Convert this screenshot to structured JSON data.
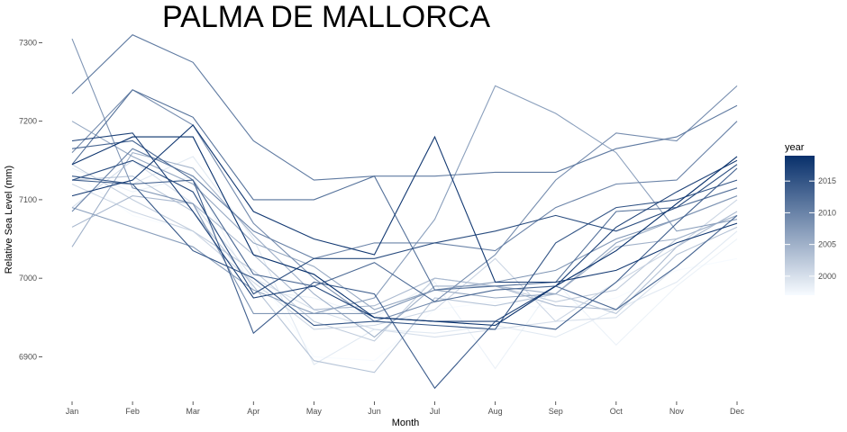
{
  "chart_data": {
    "type": "line",
    "title": "PALMA DE MALLORCA",
    "xlabel": "Month",
    "ylabel": "Relative Sea Level (mm)",
    "categories": [
      "Jan",
      "Feb",
      "Mar",
      "Apr",
      "May",
      "Jun",
      "Jul",
      "Aug",
      "Sep",
      "Oct",
      "Nov",
      "Dec"
    ],
    "ylim": [
      6850,
      7320
    ],
    "yticks": [
      6900,
      7000,
      7100,
      7200,
      7300
    ],
    "grid": false,
    "legend": {
      "title": "year",
      "position": "right",
      "type": "colorbar",
      "range": [
        1997,
        2019
      ],
      "ticks": [
        2000,
        2005,
        2010,
        2015
      ],
      "color_low": "#f7fbff",
      "color_high": "#08306b"
    },
    "series": [
      {
        "year": 1997,
        "values": [
          7135,
          7080,
          7060,
          7010,
          6900,
          6895,
          6960,
          6970,
          6960,
          6975,
          7010,
          7025
        ]
      },
      {
        "year": 1998,
        "values": [
          7140,
          7110,
          7130,
          6985,
          6975,
          6950,
          6995,
          6885,
          6995,
          6915,
          6990,
          7050
        ]
      },
      {
        "year": 1999,
        "values": [
          7130,
          7120,
          7155,
          7050,
          6890,
          6935,
          6930,
          6940,
          6925,
          6960,
          6995,
          7060
        ]
      },
      {
        "year": 2000,
        "values": [
          7090,
          7150,
          7095,
          7000,
          6960,
          6935,
          6925,
          6935,
          6945,
          6950,
          7015,
          7080
        ]
      },
      {
        "year": 2001,
        "values": [
          7120,
          7085,
          7060,
          6995,
          6935,
          6940,
          6960,
          7025,
          6945,
          6995,
          7040,
          7100
        ]
      },
      {
        "year": 2002,
        "values": [
          7145,
          7100,
          7060,
          7010,
          6945,
          6920,
          7000,
          6990,
          6970,
          6985,
          7050,
          7080
        ]
      },
      {
        "year": 2003,
        "values": [
          7125,
          7130,
          7085,
          6990,
          6895,
          6880,
          6975,
          6965,
          6980,
          6955,
          7030,
          7065
        ]
      },
      {
        "year": 2004,
        "values": [
          7065,
          7105,
          7095,
          7030,
          6960,
          6965,
          7000,
          6990,
          6965,
          6960,
          7040,
          7085
        ]
      },
      {
        "year": 2005,
        "values": [
          7040,
          7160,
          7140,
          7055,
          6980,
          6925,
          6990,
          6990,
          6980,
          7040,
          7050,
          7080
        ]
      },
      {
        "year": 2006,
        "values": [
          7200,
          7155,
          7120,
          7045,
          7015,
          6960,
          6985,
          6975,
          6980,
          7045,
          7075,
          7105
        ]
      },
      {
        "year": 2007,
        "values": [
          7090,
          7065,
          7040,
          6985,
          6955,
          6975,
          7075,
          7245,
          7210,
          7160,
          7060,
          7075
        ]
      },
      {
        "year": 2008,
        "values": [
          7305,
          7115,
          7095,
          6955,
          6955,
          6955,
          6985,
          6995,
          7010,
          7050,
          7075,
          7105
        ]
      },
      {
        "year": 2009,
        "values": [
          7160,
          7240,
          7195,
          7070,
          7000,
          6945,
          6970,
          7030,
          7125,
          7185,
          7175,
          7245
        ]
      },
      {
        "year": 2010,
        "values": [
          7085,
          7165,
          7130,
          7060,
          7025,
          7045,
          7045,
          7035,
          7090,
          7120,
          7125,
          7200
        ]
      },
      {
        "year": 2011,
        "values": [
          7235,
          7310,
          7275,
          7175,
          7125,
          7130,
          7130,
          7135,
          7135,
          7165,
          7180,
          7220
        ]
      },
      {
        "year": 2012,
        "values": [
          7145,
          7240,
          7205,
          7100,
          7100,
          7130,
          6985,
          6990,
          6995,
          7085,
          7090,
          7115
        ]
      },
      {
        "year": 2013,
        "values": [
          7165,
          7175,
          7125,
          7005,
          6990,
          7020,
          6970,
          6985,
          6990,
          6960,
          7015,
          7080
        ]
      },
      {
        "year": 2014,
        "values": [
          7125,
          7120,
          7125,
          6930,
          6995,
          6980,
          6860,
          6945,
          6935,
          6995,
          7070,
          7140
        ]
      },
      {
        "year": 2015,
        "values": [
          7130,
          7120,
          7035,
          7000,
          6940,
          6945,
          6940,
          6935,
          7045,
          7090,
          7100,
          7125
        ]
      },
      {
        "year": 2016,
        "values": [
          7125,
          7150,
          7110,
          6980,
          7025,
          7025,
          7045,
          7060,
          7080,
          7060,
          7090,
          7145
        ]
      },
      {
        "year": 2017,
        "values": [
          7175,
          7185,
          7085,
          6975,
          6990,
          6950,
          6945,
          6945,
          6990,
          7065,
          7110,
          7150
        ]
      },
      {
        "year": 2018,
        "values": [
          7105,
          7125,
          7195,
          7085,
          7050,
          7030,
          7180,
          6995,
          6995,
          7010,
          7045,
          7070
        ]
      },
      {
        "year": 2019,
        "values": [
          7145,
          7180,
          7180,
          7030,
          7005,
          6950,
          6945,
          6940,
          6990,
          7035,
          7095,
          7155
        ]
      }
    ]
  }
}
